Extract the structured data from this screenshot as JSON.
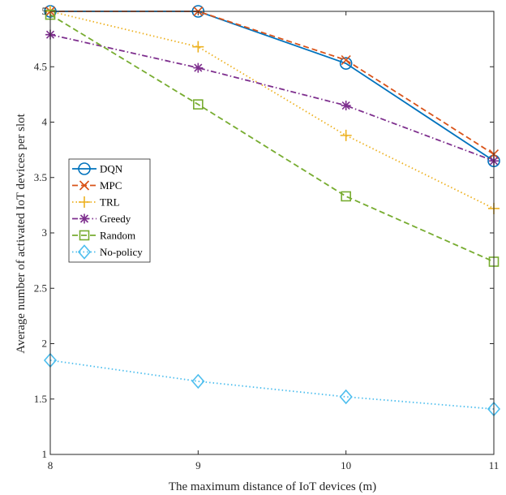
{
  "chart_data": {
    "type": "line",
    "title": "",
    "xlabel": "The maximum distance of IoT devices (m)",
    "ylabel": "Average number of activated IoT devices per slot",
    "x": [
      8,
      9,
      10,
      11
    ],
    "xlim": [
      8,
      11
    ],
    "ylim": [
      1,
      5
    ],
    "xticks": [
      "8",
      "9",
      "10",
      "11"
    ],
    "yticks": [
      "1",
      "1.5",
      "2",
      "2.5",
      "3",
      "3.5",
      "4",
      "4.5",
      "5"
    ],
    "grid": false,
    "legend_position": "middle-left",
    "series": [
      {
        "name": "DQN",
        "values": [
          5.0,
          5.0,
          4.53,
          3.65
        ],
        "color": "#0072BD",
        "marker": "circle",
        "dash": "solid"
      },
      {
        "name": "MPC",
        "values": [
          5.0,
          5.0,
          4.56,
          3.71
        ],
        "color": "#D95319",
        "marker": "x",
        "dash": "dashed"
      },
      {
        "name": "TRL",
        "values": [
          5.0,
          4.68,
          3.88,
          3.22
        ],
        "color": "#EDB120",
        "marker": "plus",
        "dash": "dotted"
      },
      {
        "name": "Greedy",
        "values": [
          4.79,
          4.49,
          4.15,
          3.65
        ],
        "color": "#7E2F8E",
        "marker": "asterisk",
        "dash": "dashdot"
      },
      {
        "name": "Random",
        "values": [
          4.97,
          4.16,
          3.33,
          2.74
        ],
        "color": "#77AC30",
        "marker": "square",
        "dash": "dashed"
      },
      {
        "name": "No-policy",
        "values": [
          1.85,
          1.66,
          1.52,
          1.41
        ],
        "color": "#4DBEEE",
        "marker": "diamond",
        "dash": "dotted"
      }
    ]
  }
}
